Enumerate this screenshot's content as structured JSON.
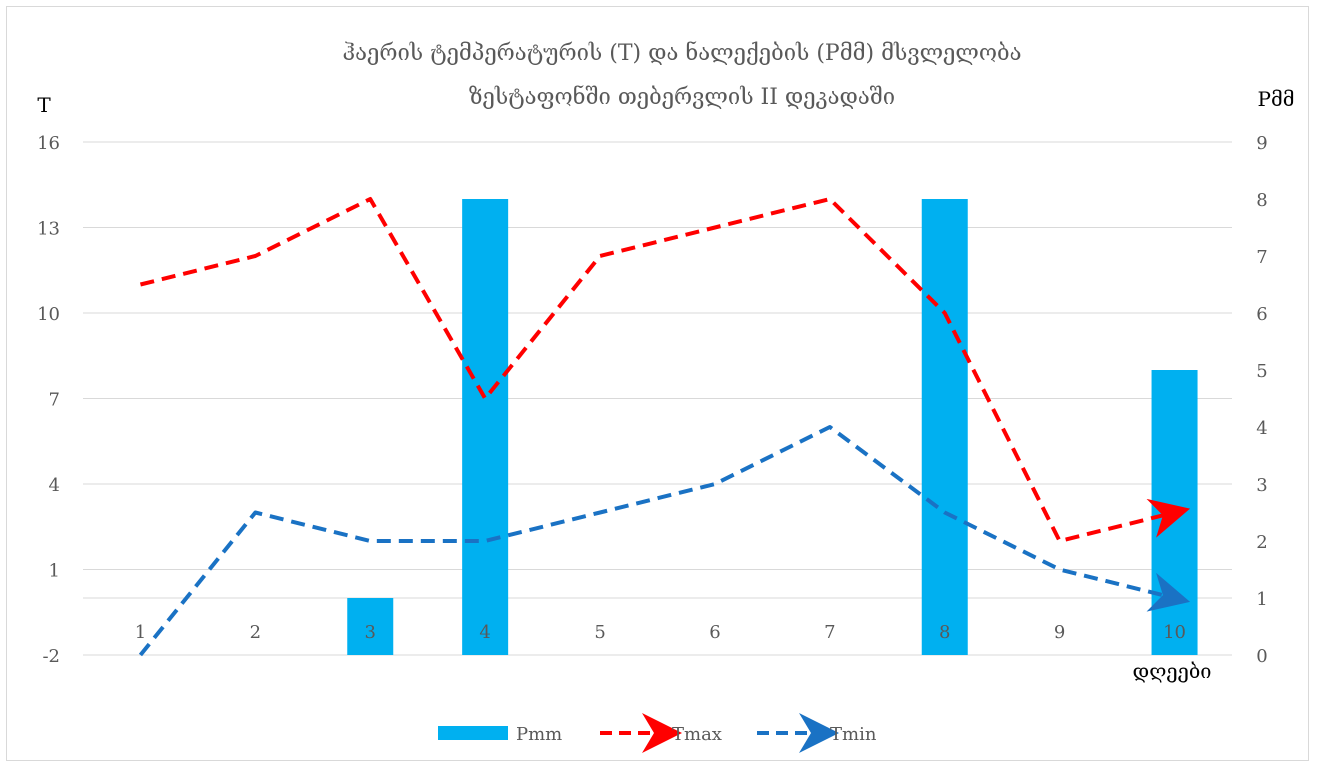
{
  "chart_data": {
    "type": "bar+line",
    "title_line1": "ჰაერის ტემპერატურის (T) და ნალექების (Pმმ)  მსვლელობა",
    "title_line2": "ზესტაფონში თებერვლის II დეკადაში",
    "y_left_label": "T",
    "y_right_label": "Pმმ",
    "x_label": "დღეები",
    "categories": [
      "1",
      "2",
      "3",
      "4",
      "5",
      "6",
      "7",
      "8",
      "9",
      "10"
    ],
    "y_left": {
      "min": -2,
      "max": 16,
      "ticks": [
        "-2",
        "1",
        "4",
        "7",
        "10",
        "13",
        "16"
      ],
      "tick_values": [
        -2,
        1,
        4,
        7,
        10,
        13,
        16
      ]
    },
    "y_right": {
      "min": 0,
      "max": 9,
      "ticks": [
        "0",
        "1",
        "2",
        "3",
        "4",
        "5",
        "6",
        "7",
        "8",
        "9"
      ],
      "tick_values": [
        0,
        1,
        2,
        3,
        4,
        5,
        6,
        7,
        8,
        9
      ]
    },
    "gridlines": true,
    "legend_position": "bottom",
    "series": [
      {
        "name": "Pmm",
        "type": "bar",
        "axis": "right",
        "color": "#00b0f0",
        "values": [
          0,
          0,
          1,
          8,
          0,
          0,
          0,
          8,
          0,
          5
        ]
      },
      {
        "name": "Tmax",
        "type": "line",
        "axis": "left",
        "color": "#ff0000",
        "dash": true,
        "arrow_end": true,
        "values": [
          11,
          12,
          14,
          7,
          12,
          13,
          14,
          10,
          2,
          3
        ]
      },
      {
        "name": "Tmin",
        "type": "line",
        "axis": "left",
        "color": "#1a72c4",
        "dash": true,
        "arrow_end": true,
        "values": [
          -2,
          3,
          2,
          2,
          3,
          4,
          6,
          3,
          1,
          0
        ]
      }
    ]
  }
}
